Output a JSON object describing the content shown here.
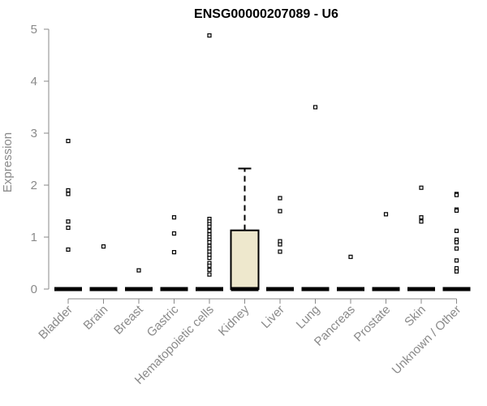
{
  "colors": {
    "axis": "#8a8a8a",
    "text": "#8a8a8a",
    "title": "#000000",
    "box_fill": "#eee8cd",
    "box_stroke": "#000000",
    "points": "#000000"
  },
  "chart_data": {
    "type": "box",
    "title": "ENSG00000207089 - U6",
    "xlabel": "",
    "ylabel": "Expression",
    "ylim": [
      0,
      5
    ],
    "yticks": [
      0,
      1,
      2,
      3,
      4,
      5
    ],
    "grid": false,
    "categories": [
      "Bladder",
      "Brain",
      "Breast",
      "Gastric",
      "Hematopoietic cells",
      "Kidney",
      "Liver",
      "Lung",
      "Pancreas",
      "Prostate",
      "Skin",
      "Unknown / Other"
    ],
    "boxes": [
      {
        "category": "Bladder",
        "q1": 0,
        "median": 0,
        "q3": 0,
        "whisker_low": 0,
        "whisker_high": 0
      },
      {
        "category": "Brain",
        "q1": 0,
        "median": 0,
        "q3": 0,
        "whisker_low": 0,
        "whisker_high": 0
      },
      {
        "category": "Breast",
        "q1": 0,
        "median": 0,
        "q3": 0,
        "whisker_low": 0,
        "whisker_high": 0
      },
      {
        "category": "Gastric",
        "q1": 0,
        "median": 0,
        "q3": 0,
        "whisker_low": 0,
        "whisker_high": 0
      },
      {
        "category": "Hematopoietic cells",
        "q1": 0,
        "median": 0,
        "q3": 0,
        "whisker_low": 0,
        "whisker_high": 0
      },
      {
        "category": "Kidney",
        "q1": 0,
        "median": 0,
        "q3": 1.13,
        "whisker_low": 0,
        "whisker_high": 2.32
      },
      {
        "category": "Liver",
        "q1": 0,
        "median": 0,
        "q3": 0,
        "whisker_low": 0,
        "whisker_high": 0
      },
      {
        "category": "Lung",
        "q1": 0,
        "median": 0,
        "q3": 0,
        "whisker_low": 0,
        "whisker_high": 0
      },
      {
        "category": "Pancreas",
        "q1": 0,
        "median": 0,
        "q3": 0,
        "whisker_low": 0,
        "whisker_high": 0
      },
      {
        "category": "Prostate",
        "q1": 0,
        "median": 0,
        "q3": 0,
        "whisker_low": 0,
        "whisker_high": 0
      },
      {
        "category": "Skin",
        "q1": 0,
        "median": 0,
        "q3": 0,
        "whisker_low": 0,
        "whisker_high": 0
      },
      {
        "category": "Unknown / Other",
        "q1": 0,
        "median": 0,
        "q3": 0,
        "whisker_low": 0,
        "whisker_high": 0
      }
    ],
    "outliers": [
      [
        2.85,
        1.9,
        1.83,
        1.3,
        1.18,
        0.76
      ],
      [
        0.82
      ],
      [
        0.36
      ],
      [
        1.38,
        1.07,
        0.71
      ],
      [
        4.88,
        1.35,
        1.3,
        1.25,
        1.2,
        1.12,
        1.05,
        1.0,
        0.95,
        0.9,
        0.83,
        0.78,
        0.72,
        0.66,
        0.6,
        0.5,
        0.45,
        0.37,
        0.28
      ],
      [],
      [
        1.75,
        1.5,
        0.92,
        0.86,
        0.72
      ],
      [
        3.5
      ],
      [
        0.62
      ],
      [
        1.44
      ],
      [
        1.95,
        1.38,
        1.3
      ],
      [
        1.83,
        1.81,
        1.53,
        1.51,
        1.12,
        0.95,
        0.9,
        0.78,
        0.55,
        0.4,
        0.34
      ]
    ],
    "zero_markers": true
  }
}
